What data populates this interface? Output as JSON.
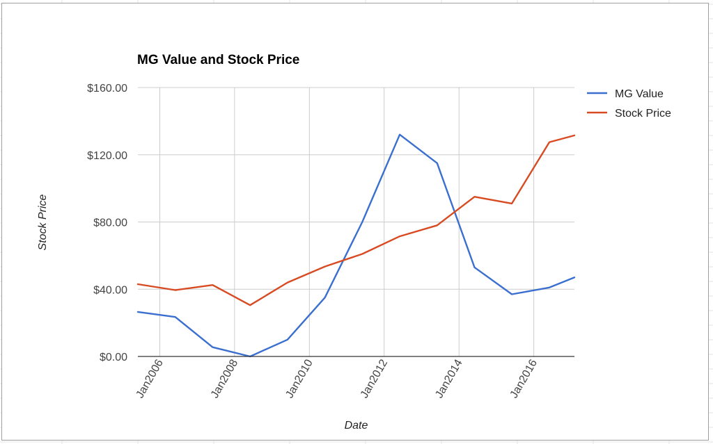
{
  "chart_data": {
    "type": "line",
    "title": "MG Value and Stock Price",
    "xlabel": "Date",
    "ylabel": "Stock Price",
    "y_ticks": [
      "$0.00",
      "$40.00",
      "$80.00",
      "$120.00",
      "$160.00"
    ],
    "ylim": [
      0,
      160
    ],
    "x_ticks": [
      {
        "label": "Jan2006",
        "date": "2006-01-01"
      },
      {
        "label": "Jan2008",
        "date": "2008-01-01"
      },
      {
        "label": "Jan2010",
        "date": "2010-01-01"
      },
      {
        "label": "Jan2012",
        "date": "2012-01-01"
      },
      {
        "label": "Jan2014",
        "date": "2014-01-01"
      },
      {
        "label": "Jan2016",
        "date": "2016-01-01"
      }
    ],
    "xlim": [
      "2005-06-01",
      "2017-02-01"
    ],
    "grid": true,
    "legend_position": "right",
    "x": [
      "2005-06-01",
      "2006-06-01",
      "2007-06-01",
      "2008-06-01",
      "2009-06-01",
      "2010-06-01",
      "2011-06-01",
      "2012-06-01",
      "2013-06-01",
      "2014-06-01",
      "2015-06-01",
      "2016-06-01",
      "2017-02-01"
    ],
    "series": [
      {
        "name": "MG Value",
        "color": "#3a6fd0",
        "values": [
          26.5,
          23.5,
          5.5,
          0,
          10,
          35,
          80,
          132,
          115,
          53,
          37,
          41,
          47
        ]
      },
      {
        "name": "Stock Price",
        "color": "#d84a22",
        "values": [
          43,
          39.5,
          42.5,
          30.5,
          44,
          53.5,
          61,
          71.5,
          78,
          95,
          91,
          127.5,
          131.5
        ]
      }
    ]
  }
}
